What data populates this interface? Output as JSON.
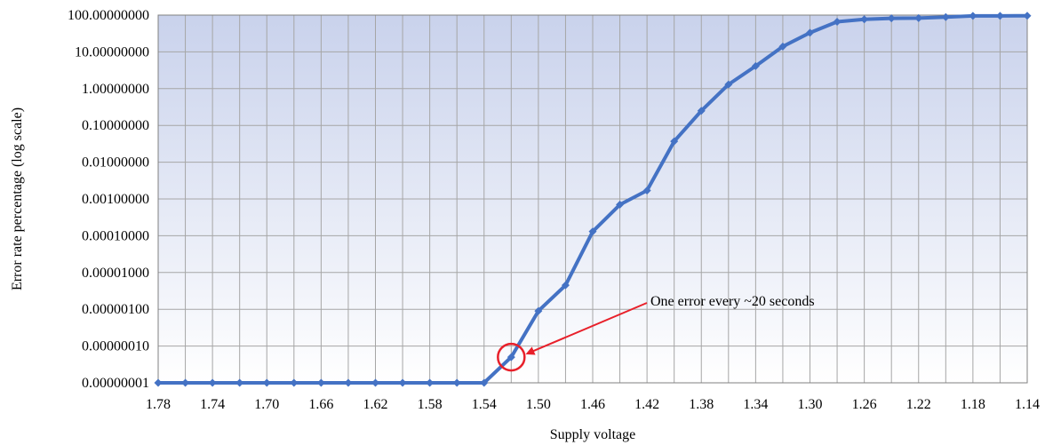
{
  "chart_data": {
    "type": "line",
    "title": "",
    "xlabel": "Supply voltage",
    "ylabel": "Error rate percentage (log scale)",
    "x_ticks": [
      "1.78",
      "1.74",
      "1.70",
      "1.66",
      "1.62",
      "1.58",
      "1.54",
      "1.50",
      "1.46",
      "1.42",
      "1.38",
      "1.34",
      "1.30",
      "1.26",
      "1.22",
      "1.18",
      "1.14"
    ],
    "y_ticks": [
      "0.00000001",
      "0.00000010",
      "0.00000100",
      "0.00001000",
      "0.00010000",
      "0.00100000",
      "0.01000000",
      "0.10000000",
      "1.00000000",
      "10.00000000",
      "100.00000000"
    ],
    "x_reversed": true,
    "xlim": [
      1.78,
      1.14
    ],
    "ylim": [
      1e-08,
      100
    ],
    "y_scale": "log",
    "grid": true,
    "legend": "none",
    "colors": {
      "series": "#4472C4",
      "marker": "#4472C4",
      "annotation": "#E8202A",
      "plot_top": "#C9D2EC",
      "plot_bottom": "#FFFFFF"
    },
    "series": [
      {
        "x": [
          1.78,
          1.76,
          1.74,
          1.72,
          1.7,
          1.68,
          1.66,
          1.64,
          1.62,
          1.6,
          1.58,
          1.56,
          1.54,
          1.52,
          1.5,
          1.48,
          1.46,
          1.44,
          1.42,
          1.4,
          1.38,
          1.36,
          1.34,
          1.32,
          1.3,
          1.28,
          1.26,
          1.24,
          1.22,
          1.2,
          1.18,
          1.16,
          1.14
        ],
        "y": [
          1e-08,
          1e-08,
          1e-08,
          1e-08,
          1e-08,
          1e-08,
          1e-08,
          1e-08,
          1e-08,
          1e-08,
          1e-08,
          1e-08,
          1e-08,
          5e-08,
          9e-07,
          4.5e-06,
          0.00013,
          0.0007,
          0.0017,
          0.037,
          0.25,
          1.3,
          4.1,
          14,
          33,
          66,
          77,
          82,
          83,
          88,
          95,
          95,
          96
        ]
      }
    ],
    "annotations": [
      {
        "text": "One error every ~20 seconds",
        "x": 1.52,
        "y": 5e-08
      }
    ]
  }
}
